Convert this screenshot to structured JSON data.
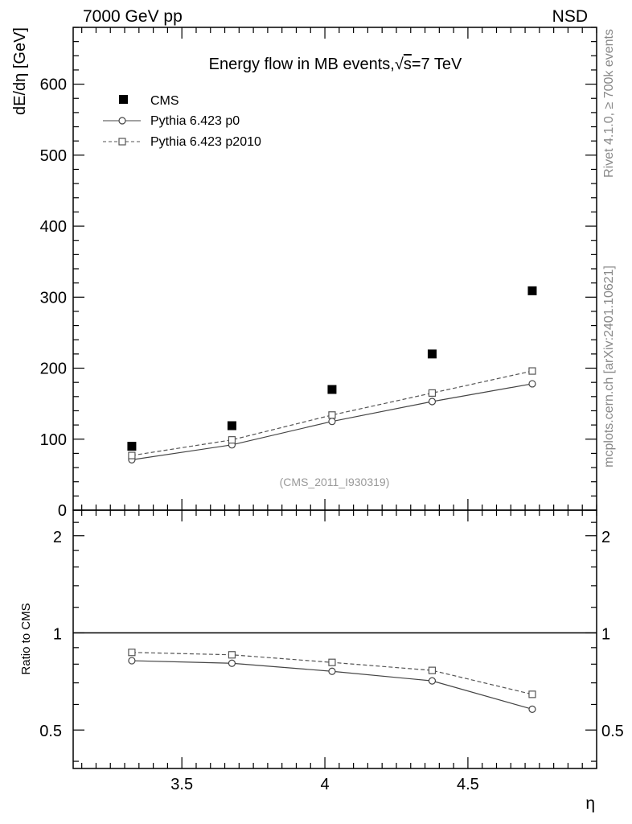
{
  "header": {
    "left_label": "7000 GeV pp",
    "right_label": "NSD"
  },
  "side_labels": {
    "rivet": "Rivet 4.1.0, ≥ 700k events",
    "mcplots": "mcplots.cern.ch [arXiv:2401.10621]"
  },
  "reference_label": "(CMS_2011_I930319)",
  "colors": {
    "data": "#000000",
    "p0": "#444444",
    "p2010": "#555555",
    "side_text": "#888888"
  },
  "chart_data": [
    {
      "type": "line",
      "title": "Energy flow in MB events,√s=7 TeV",
      "title_prefix": "Energy flow in MB events,",
      "title_root": "√",
      "title_s": "s",
      "title_suffix": "=7 TeV",
      "ylabel": "dE/dη [GeV]",
      "xlabel": "η",
      "xlim": [
        3.12,
        4.95
      ],
      "ylim": [
        0,
        680
      ],
      "y_ticks": [
        0,
        100,
        200,
        300,
        400,
        500,
        600
      ],
      "x": [
        3.325,
        3.675,
        4.025,
        4.375,
        4.725
      ],
      "legend_position": "top-left",
      "series": [
        {
          "name": "CMS",
          "marker": "square-filled",
          "style": "markers",
          "values": [
            90,
            119,
            170,
            220,
            309
          ]
        },
        {
          "name": "Pythia 6.423 p0",
          "marker": "circle-open",
          "style": "solid",
          "values": [
            71,
            92,
            125,
            153,
            178
          ]
        },
        {
          "name": "Pythia 6.423 p2010",
          "marker": "square-open",
          "style": "dashed",
          "values": [
            77,
            99,
            134,
            165,
            196
          ]
        }
      ]
    },
    {
      "type": "line",
      "title": "",
      "ylabel": "Ratio to CMS",
      "xlabel": "η",
      "xlim": [
        3.12,
        4.95
      ],
      "ylim": [
        0.38,
        2.4
      ],
      "scale": "log",
      "y_ticks": [
        0.5,
        1,
        2
      ],
      "x_ticks": [
        3.5,
        4,
        4.5
      ],
      "x_tick_labels": [
        "3.5",
        "4",
        "4.5"
      ],
      "x": [
        3.325,
        3.675,
        4.025,
        4.375,
        4.725
      ],
      "reference_line": 1,
      "series": [
        {
          "name": "Pythia 6.423 p0",
          "marker": "circle-open",
          "style": "solid",
          "values": [
            0.82,
            0.805,
            0.76,
            0.71,
            0.58
          ]
        },
        {
          "name": "Pythia 6.423 p2010",
          "marker": "square-open",
          "style": "dashed",
          "values": [
            0.87,
            0.855,
            0.81,
            0.765,
            0.645
          ]
        }
      ]
    }
  ]
}
